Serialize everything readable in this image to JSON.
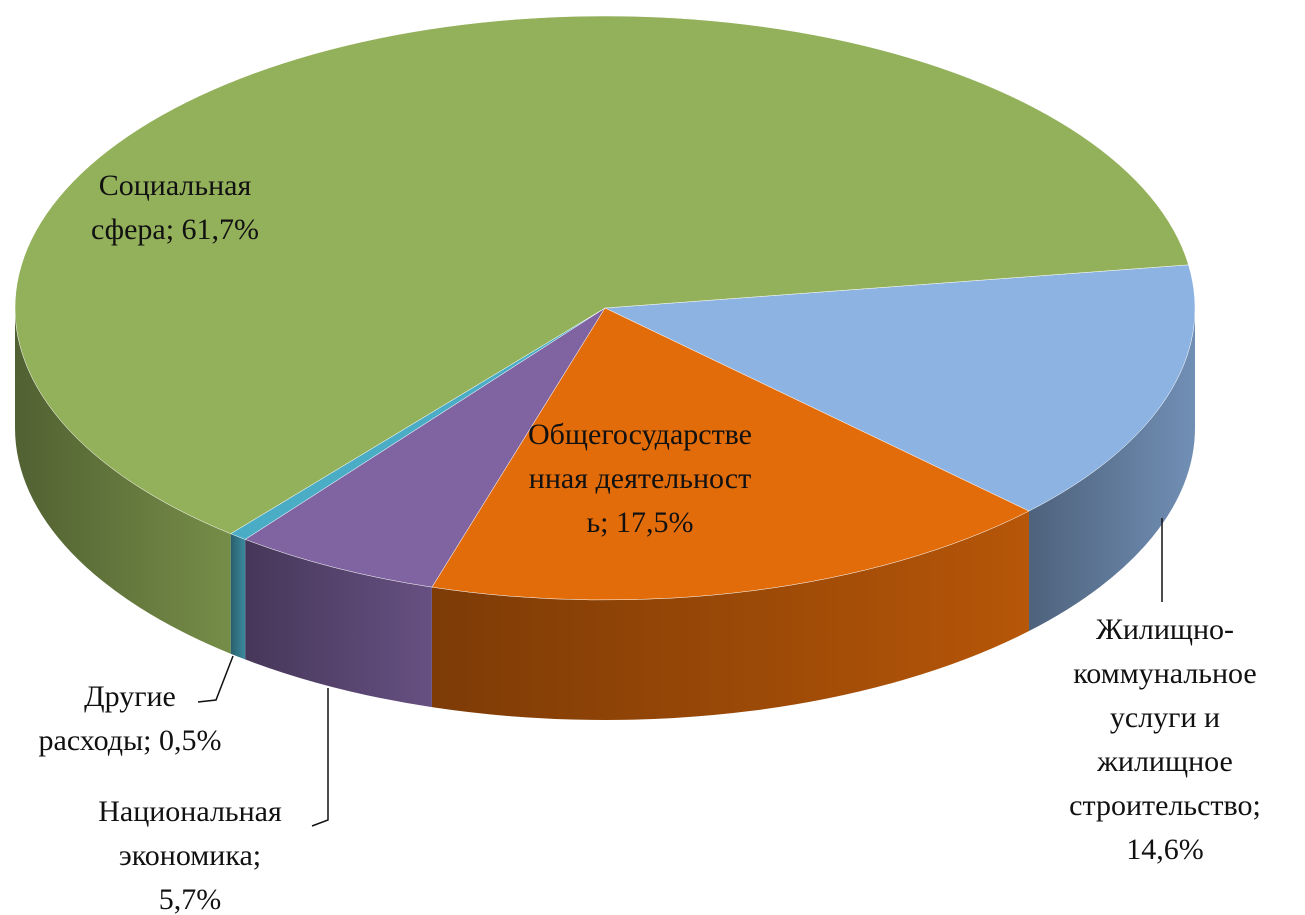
{
  "chart_data": {
    "type": "pie",
    "categories": [
      "Жилищно-коммунальное услуги и жилищное строительство;",
      "Общегосударственная деятельность;",
      "Национальная экономика;",
      "Другие расходы;",
      "Социальная сфера;"
    ],
    "values": [
      14.6,
      17.5,
      5.7,
      0.5,
      61.7
    ],
    "value_labels": [
      "14,6%",
      "17,5%",
      "5,7%",
      "0,5%",
      "61,7%"
    ],
    "colors": [
      "#8db3e2",
      "#e36c0a",
      "#8064a2",
      "#4bacc6",
      "#93b05a"
    ]
  }
}
